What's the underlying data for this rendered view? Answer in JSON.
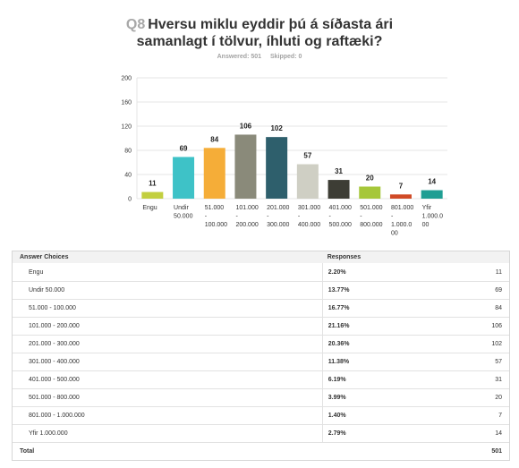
{
  "question": {
    "number": "Q8",
    "title_line1": "Hversu miklu eyddir þú á síðasta ári",
    "title_line2": "samanlagt í tölvur, íhluti og raftæki?",
    "answered_label": "Answered: 501",
    "skipped_label": "Skipped: 0"
  },
  "chart_data": {
    "type": "bar",
    "categories": [
      [
        "Engu"
      ],
      [
        "Undir",
        "50.000"
      ],
      [
        "51.000",
        "-",
        "100.000"
      ],
      [
        "101.000",
        "-",
        "200.000"
      ],
      [
        "201.000",
        "-",
        "300.000"
      ],
      [
        "301.000",
        "-",
        "400.000"
      ],
      [
        "401.000",
        "-",
        "500.000"
      ],
      [
        "501.000",
        "-",
        "800.000"
      ],
      [
        "801.000",
        "-",
        "1.000.0",
        "00"
      ],
      [
        "Yfir",
        "1.000.0",
        "00"
      ]
    ],
    "values": [
      11,
      69,
      84,
      106,
      102,
      57,
      31,
      20,
      7,
      14
    ],
    "colors": [
      "#c2cf3f",
      "#3ec2c7",
      "#f5ad38",
      "#8a8a7a",
      "#2e5f6c",
      "#cfcfc4",
      "#3d3d35",
      "#a6c73a",
      "#d04a26",
      "#1f9e93"
    ],
    "ylim": [
      0,
      200
    ],
    "yticks": [
      0,
      40,
      80,
      120,
      160,
      200
    ],
    "grid": true
  },
  "table": {
    "header": {
      "choices": "Answer Choices",
      "responses": "Responses"
    },
    "rows": [
      {
        "label": "Engu",
        "pct": "2.20%",
        "count": "11"
      },
      {
        "label": "Undir 50.000",
        "pct": "13.77%",
        "count": "69"
      },
      {
        "label": "51.000 - 100.000",
        "pct": "16.77%",
        "count": "84"
      },
      {
        "label": "101.000 - 200.000",
        "pct": "21.16%",
        "count": "106"
      },
      {
        "label": "201.000 - 300.000",
        "pct": "20.36%",
        "count": "102"
      },
      {
        "label": "301.000 - 400.000",
        "pct": "11.38%",
        "count": "57"
      },
      {
        "label": "401.000 - 500.000",
        "pct": "6.19%",
        "count": "31"
      },
      {
        "label": "501.000 - 800.000",
        "pct": "3.99%",
        "count": "20"
      },
      {
        "label": "801.000 - 1.000.000",
        "pct": "1.40%",
        "count": "7"
      },
      {
        "label": "Yfir 1.000.000",
        "pct": "2.79%",
        "count": "14"
      }
    ],
    "total": {
      "label": "Total",
      "count": "501"
    }
  }
}
